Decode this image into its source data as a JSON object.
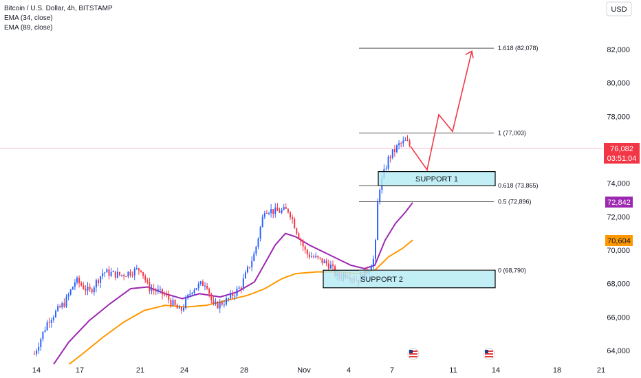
{
  "header": {
    "symbol": "Bitcoin / U.S. Dollar, 4h, BITSTAMP",
    "indicators": [
      "EMA (34, close)",
      "EMA (89, close)"
    ],
    "currency": "USD"
  },
  "colors": {
    "up": "#2962ff",
    "down": "#f23645",
    "ema34": "#9c27b0",
    "ema89": "#ff9800",
    "projection": "#f23645",
    "support_fill": "#b2ebf2",
    "price_line": "#f8bbd0"
  },
  "chart_data": {
    "type": "candlestick",
    "x_ticks": [
      "14",
      "17",
      "21",
      "24",
      "28",
      "Nov",
      "4",
      "7",
      "11",
      "14",
      "18",
      "21"
    ],
    "y_ticks": [
      "64,000",
      "66,000",
      "68,000",
      "70,000",
      "72,000",
      "74,000",
      "76,000",
      "78,000",
      "80,000",
      "82,000"
    ],
    "ylim": [
      63000,
      85000
    ],
    "last_price": {
      "label": "76,082",
      "countdown": "03:51:04",
      "value": 76082
    },
    "ema34": {
      "value": 72842,
      "label": "72,842"
    },
    "ema89": {
      "value": 70604,
      "label": "70,604"
    },
    "fib_levels": [
      {
        "label": "1.618 (82,078)",
        "value": 82078
      },
      {
        "label": "1 (77,003)",
        "value": 77003
      },
      {
        "label": "0.618 (73,865)",
        "value": 73865
      },
      {
        "label": "0.5 (72,896)",
        "value": 72896
      },
      {
        "label": "0 (68,790)",
        "value": 68790
      }
    ],
    "zones": [
      {
        "label": "SUPPORT 1",
        "low": 73850,
        "high": 74700
      },
      {
        "label": "SUPPORT 2",
        "low": 67750,
        "high": 68800
      }
    ],
    "projection": [
      76200,
      74800,
      78100,
      77100,
      81900
    ]
  }
}
